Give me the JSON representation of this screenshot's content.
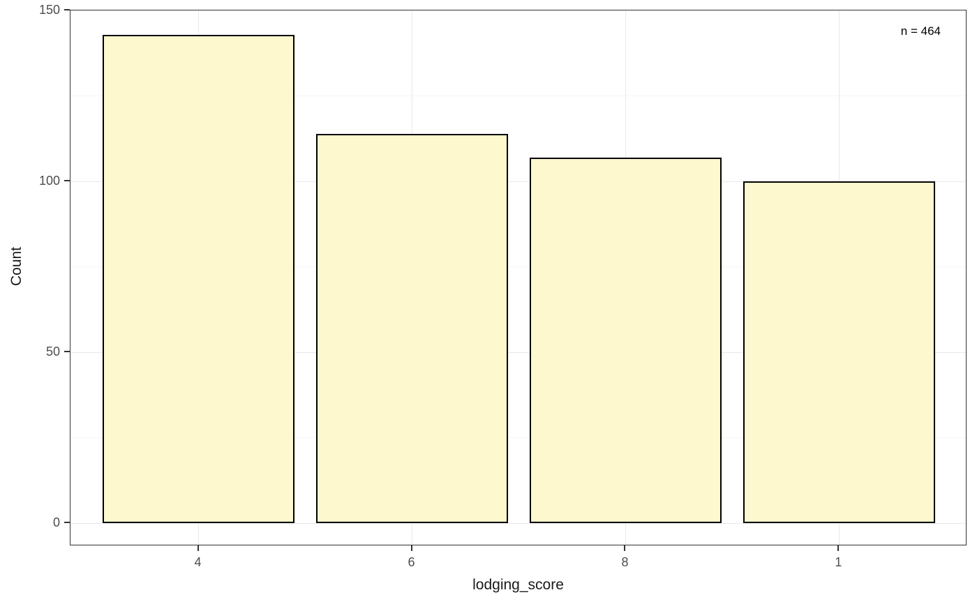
{
  "chart_data": {
    "type": "bar",
    "title": "",
    "xlabel": "lodging_score",
    "ylabel": "Count",
    "categories": [
      "4",
      "6",
      "8",
      "1"
    ],
    "values": [
      143,
      114,
      107,
      100
    ],
    "annotation": "n = 464",
    "ylim": [
      0,
      150
    ],
    "y_major_ticks": [
      0,
      50,
      100,
      150
    ],
    "y_minor_ticks": [
      25,
      75,
      125
    ],
    "grid": true,
    "legend": "none",
    "colors": {
      "bar_fill": "#FDF8CD",
      "bar_border": "#000000",
      "panel_border": "#333333",
      "grid_major": "#e8e8e8",
      "grid_minor": "#f4f4f4",
      "tick_mark": "#333333",
      "tick_label": "#4d4d4d",
      "axis_title": "#1a1a1a",
      "background": "#ffffff"
    }
  }
}
